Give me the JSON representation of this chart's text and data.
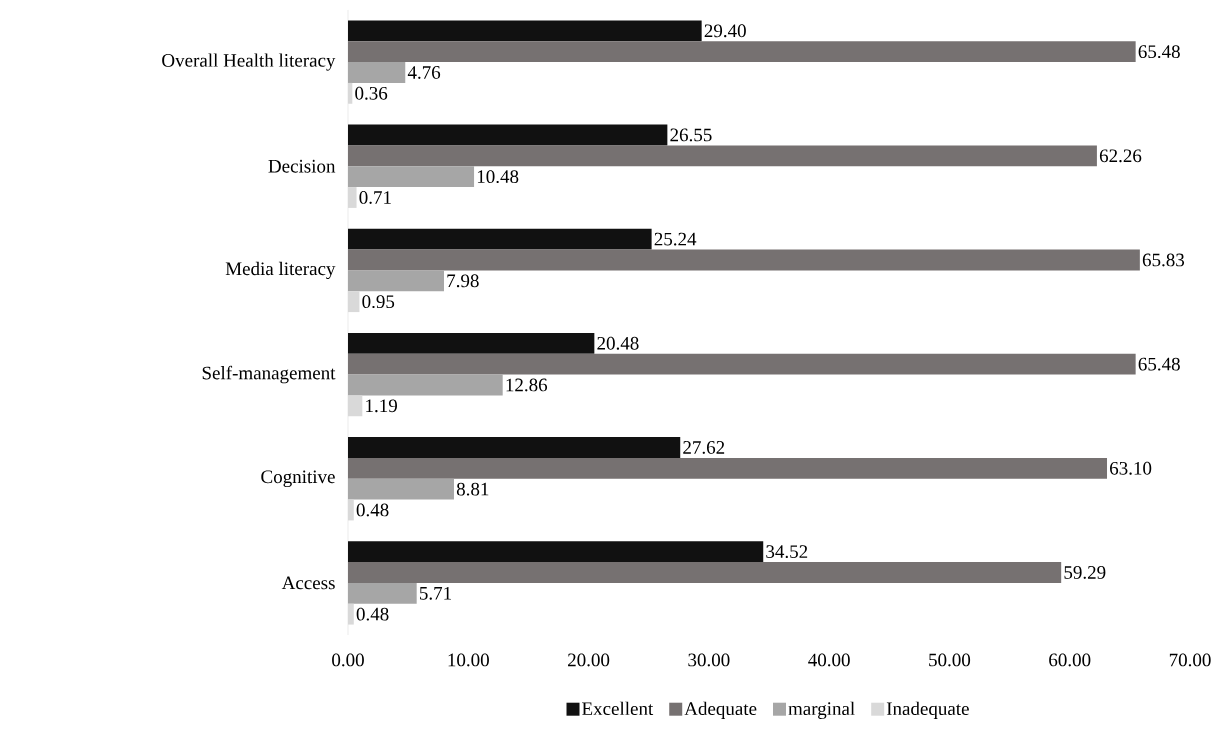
{
  "chart_data": {
    "type": "bar",
    "orientation": "horizontal",
    "categories": [
      "Overall Health literacy",
      "Decision",
      "Media literacy",
      "Self-management",
      "Cognitive",
      "Access"
    ],
    "series": [
      {
        "name": "Excellent",
        "color": "#111111",
        "values": [
          29.4,
          26.55,
          25.24,
          20.48,
          27.62,
          34.52
        ],
        "value_labels": [
          "29.40",
          "26.55",
          "25.24",
          "20.48",
          "27.62",
          "34.52"
        ]
      },
      {
        "name": "Adequate",
        "color": "#767171",
        "values": [
          65.48,
          62.26,
          65.83,
          65.48,
          63.1,
          59.29
        ],
        "value_labels": [
          "65.48",
          "62.26",
          "65.83",
          "65.48",
          "63.10",
          "59.29"
        ]
      },
      {
        "name": "marginal",
        "color": "#a6a6a6",
        "values": [
          4.76,
          10.48,
          7.98,
          12.86,
          8.81,
          5.71
        ],
        "value_labels": [
          "4.76",
          "10.48",
          "7.98",
          "12.86",
          "8.81",
          "5.71"
        ]
      },
      {
        "name": "Inadequate",
        "color": "#d9d9d9",
        "values": [
          0.36,
          0.71,
          0.95,
          1.19,
          0.48,
          0.48
        ],
        "value_labels": [
          "0.36",
          "0.71",
          "0.95",
          "1.19",
          "0.48",
          "0.48"
        ]
      }
    ],
    "xlim": [
      0,
      70
    ],
    "xticks": [
      {
        "value": 0,
        "label": "0.00"
      },
      {
        "value": 10,
        "label": "10.00"
      },
      {
        "value": 20,
        "label": "20.00"
      },
      {
        "value": 30,
        "label": "30.00"
      },
      {
        "value": 40,
        "label": "40.00"
      },
      {
        "value": 50,
        "label": "50.00"
      },
      {
        "value": 60,
        "label": "60.00"
      },
      {
        "value": 70,
        "label": "70.00"
      }
    ],
    "legend": "bottom",
    "grid": false
  }
}
